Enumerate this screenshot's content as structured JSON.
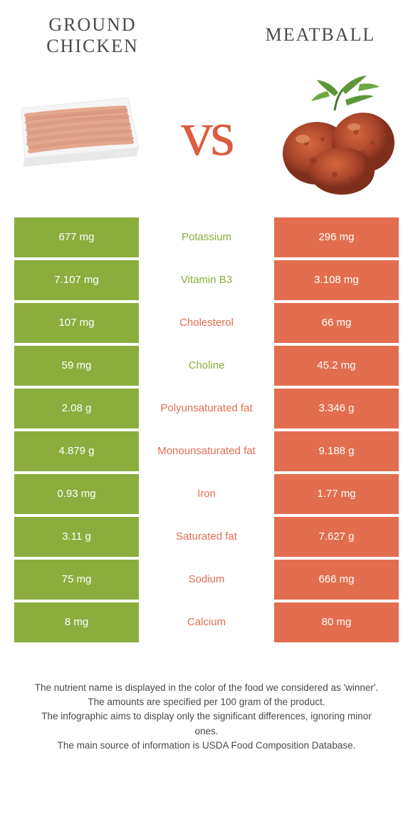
{
  "colors": {
    "green": "#8aad3e",
    "orange": "#e26e4f",
    "text": "#4a4a4a",
    "white": "#ffffff"
  },
  "food_left": {
    "title": "Ground chicken"
  },
  "food_right": {
    "title": "Meatball"
  },
  "vs": "vs",
  "rows": [
    {
      "left": "677 mg",
      "nutrient": "Potassium",
      "right": "296 mg",
      "winner": "left"
    },
    {
      "left": "7.107 mg",
      "nutrient": "Vitamin B3",
      "right": "3.108 mg",
      "winner": "left"
    },
    {
      "left": "107 mg",
      "nutrient": "Cholesterol",
      "right": "66 mg",
      "winner": "right"
    },
    {
      "left": "59 mg",
      "nutrient": "Choline",
      "right": "45.2 mg",
      "winner": "left"
    },
    {
      "left": "2.08 g",
      "nutrient": "Polyunsaturated fat",
      "right": "3.346 g",
      "winner": "right"
    },
    {
      "left": "4.879 g",
      "nutrient": "Monounsaturated fat",
      "right": "9.188 g",
      "winner": "right"
    },
    {
      "left": "0.93 mg",
      "nutrient": "Iron",
      "right": "1.77 mg",
      "winner": "right"
    },
    {
      "left": "3.11 g",
      "nutrient": "Saturated fat",
      "right": "7.627 g",
      "winner": "right"
    },
    {
      "left": "75 mg",
      "nutrient": "Sodium",
      "right": "666 mg",
      "winner": "right"
    },
    {
      "left": "8 mg",
      "nutrient": "Calcium",
      "right": "80 mg",
      "winner": "right"
    }
  ],
  "footnotes": [
    "The nutrient name is displayed in the color of the food we considered as 'winner'.",
    "The amounts are specified per 100 gram of the product.",
    "The infographic aims to display only the significant differences, ignoring minor ones.",
    "The main source of information is USDA Food Composition Database."
  ]
}
